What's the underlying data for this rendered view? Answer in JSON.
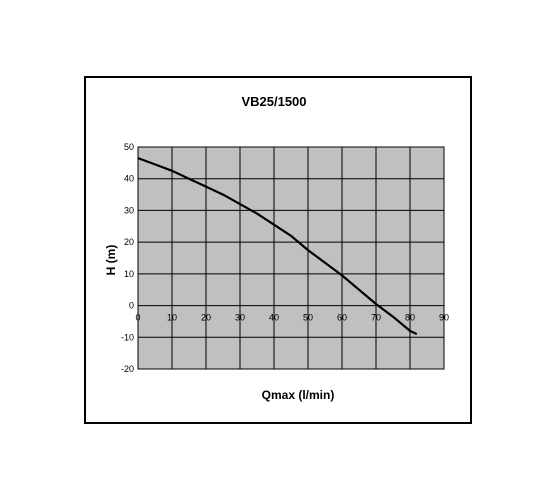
{
  "chart_data": {
    "type": "line",
    "title": "VB25/1500",
    "xlabel": "Qmax (l/min)",
    "ylabel": "H (m)",
    "xlim": [
      0,
      90
    ],
    "ylim": [
      -20,
      50
    ],
    "xticks": [
      0,
      10,
      20,
      30,
      40,
      50,
      60,
      70,
      80,
      90
    ],
    "yticks": [
      -20,
      -10,
      0,
      10,
      20,
      30,
      40,
      50
    ],
    "grid": true,
    "legend": "none",
    "plot_background": "#c0c0c0",
    "line_color": "#000000",
    "series": [
      {
        "x": [
          0,
          5,
          10,
          15,
          20,
          25,
          30,
          35,
          40,
          45,
          50,
          55,
          60,
          65,
          70,
          75,
          80,
          82
        ],
        "y": [
          46.5,
          44.5,
          42.5,
          40,
          37.5,
          35,
          32,
          29,
          25.5,
          22,
          17.5,
          13.5,
          9.5,
          5,
          0.5,
          -3.5,
          -8,
          -9
        ]
      }
    ]
  }
}
